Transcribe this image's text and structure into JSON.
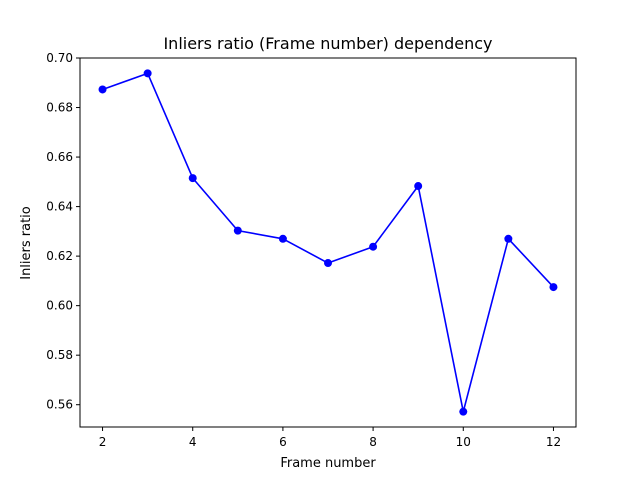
{
  "chart_data": {
    "type": "line",
    "title": "Inliers ratio (Frame number) dependency",
    "xlabel": "Frame number",
    "ylabel": "Inliers ratio",
    "xlim": [
      1.5,
      12.5
    ],
    "ylim": [
      0.551,
      0.7
    ],
    "xticks": [
      2,
      4,
      6,
      8,
      10,
      12
    ],
    "xtick_labels": [
      "2",
      "4",
      "6",
      "8",
      "10",
      "12"
    ],
    "yticks": [
      0.56,
      0.58,
      0.6,
      0.62,
      0.64,
      0.66,
      0.68,
      0.7
    ],
    "ytick_labels": [
      "0.56",
      "0.58",
      "0.60",
      "0.62",
      "0.64",
      "0.66",
      "0.68",
      "0.70"
    ],
    "grid": false,
    "series": [
      {
        "color": "#0000ff",
        "marker": "circle",
        "x": [
          2,
          3,
          4,
          5,
          6,
          7,
          8,
          9,
          10,
          11,
          12
        ],
        "y": [
          0.6873,
          0.6938,
          0.6515,
          0.6303,
          0.627,
          0.6172,
          0.6238,
          0.6483,
          0.5572,
          0.627,
          0.6075
        ]
      }
    ]
  }
}
